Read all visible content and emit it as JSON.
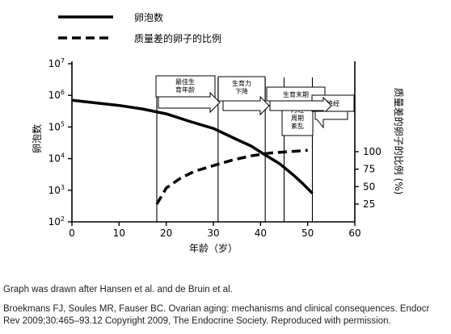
{
  "chart_data": {
    "type": "line",
    "xlabel": "年龄（岁）",
    "ylabel_left": "卵泡数",
    "ylabel_right": "质量差的卵子的比例 (%)",
    "xlim": [
      0,
      60
    ],
    "x_ticks": [
      "0",
      "10",
      "20",
      "30",
      "40",
      "50",
      "60"
    ],
    "ylim_left_log10": [
      2,
      7
    ],
    "y_ticks_left": [
      {
        "base": "10",
        "exp": "7"
      },
      {
        "base": "10",
        "exp": "6"
      },
      {
        "base": "10",
        "exp": "5"
      },
      {
        "base": "10",
        "exp": "4"
      },
      {
        "base": "10",
        "exp": "3"
      },
      {
        "base": "10",
        "exp": "2"
      }
    ],
    "y_ticks_right": [
      "100",
      "75",
      "50",
      "25"
    ],
    "legend": [
      {
        "name": "卵泡数",
        "style": "solid"
      },
      {
        "name": "质量差的卵子的比例",
        "style": "dashed"
      }
    ],
    "series": [
      {
        "name": "卵泡数",
        "axis": "left",
        "style": "solid",
        "x": [
          0,
          5,
          10,
          15,
          20,
          25,
          30,
          35,
          38,
          41,
          44,
          47,
          49,
          51
        ],
        "y": [
          700000,
          580000,
          480000,
          370000,
          260000,
          150000,
          90000,
          40000,
          25000,
          13000,
          7000,
          3000,
          1600,
          800
        ]
      },
      {
        "name": "质量差的卵子的比例",
        "axis": "right",
        "style": "dashed",
        "x": [
          18,
          20,
          23,
          26,
          30,
          34,
          38,
          42,
          46,
          50
        ],
        "y": [
          25,
          48,
          62,
          72,
          80,
          88,
          94,
          98,
          100,
          102
        ]
      }
    ],
    "stages": [
      {
        "lines": [
          "最佳生",
          "育年龄"
        ]
      },
      {
        "lines": [
          "生育力",
          "下降"
        ]
      },
      {
        "lines": [
          "生育末期"
        ]
      },
      {
        "lines": [
          "月经",
          "周期",
          "紊乱"
        ]
      },
      {
        "lines": [
          "绝经"
        ]
      }
    ],
    "stage_markers_x": [
      18,
      31,
      41,
      45,
      51
    ]
  },
  "caption": {
    "note": "Graph was drawn after Hansen et al. and de Bruin et al.",
    "citation_line1": "Broekmans FJ, Soules MR, Fauser BC. Ovarian aging: mechanisms and clinical consequences. Endocr",
    "citation_line2": "Rev 2009;30:465–93.12 Copyright 2009, The Endocrine Society. Reproduced with permission."
  }
}
